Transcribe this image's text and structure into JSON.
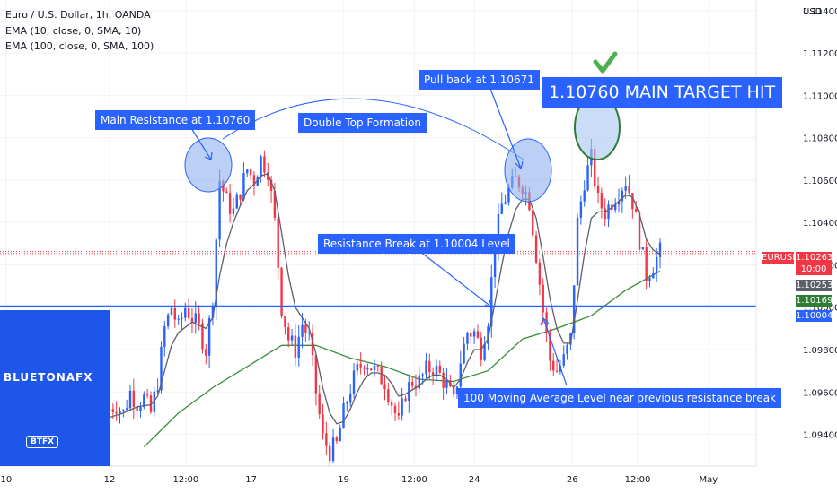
{
  "legend": {
    "title": "Euro / U.S. Dollar, 1h, OANDA",
    "ema10": "EMA (10, close, 0, SMA, 10)",
    "ema100": "EMA (100, close, 0, SMA, 100)"
  },
  "currency_label": "USD",
  "symbol_tag": "EURUSD",
  "last_price": "1.10263",
  "countdown": "10:00",
  "ema10_value": "1.10253",
  "ema100_value": "1.10169",
  "support_value": "1.10004",
  "annotations": {
    "main_resistance": "Main Resistance at 1.10760",
    "double_top": "Double Top Formation",
    "pull_back": "Pull back at 1.10671",
    "target_hit": "1.10760 MAIN TARGET HIT",
    "resistance_break": "Resistance Break at 1.10004 Level",
    "ma_level": "100 Moving Average Level near previous resistance break"
  },
  "brand": {
    "name": "BLUETONAFX",
    "badge": "BTFX"
  },
  "colors": {
    "up": "#2962ff",
    "down": "#f23645",
    "ema10": "#5d606b",
    "ema100": "#388e3c",
    "support": "#2962ff",
    "callout": "#2962ff",
    "check": "#4caf50"
  },
  "chart_data": {
    "type": "candlestick",
    "symbol": "EURUSD",
    "timeframe": "1h",
    "ylim": [
      1.0925,
      1.1145
    ],
    "y_ticks": [
      "1.11400",
      "1.11200",
      "1.11000",
      "1.10800",
      "1.10600",
      "1.10400",
      "1.10200",
      "1.10000",
      "1.09800",
      "1.09600",
      "1.09400"
    ],
    "x_ticks": [
      "10",
      "12",
      "12:00",
      "17",
      "19",
      "12:00",
      "24",
      "26",
      "12:00",
      "May"
    ],
    "support_level": 1.10004,
    "close_path": [
      [
        0,
        1.0952
      ],
      [
        2,
        1.0954
      ],
      [
        4,
        1.095
      ],
      [
        6,
        1.096
      ],
      [
        8,
        1.0955
      ],
      [
        10,
        1.0957
      ],
      [
        12,
        1.095
      ],
      [
        14,
        1.0965
      ],
      [
        16,
        1.099
      ],
      [
        18,
        1.1
      ],
      [
        20,
        1.099
      ],
      [
        22,
        1.1
      ],
      [
        24,
        1.0995
      ],
      [
        26,
        1.099
      ],
      [
        28,
        1.098
      ],
      [
        30,
        1.1005
      ],
      [
        32,
        1.106
      ],
      [
        34,
        1.105
      ],
      [
        36,
        1.1045
      ],
      [
        38,
        1.1055
      ],
      [
        40,
        1.1065
      ],
      [
        42,
        1.106
      ],
      [
        44,
        1.107
      ],
      [
        46,
        1.1065
      ],
      [
        48,
        1.104
      ],
      [
        50,
        1.1
      ],
      [
        52,
        1.0985
      ],
      [
        54,
        1.098
      ],
      [
        56,
        1.0992
      ],
      [
        58,
        1.0985
      ],
      [
        60,
        1.096
      ],
      [
        62,
        1.0938
      ],
      [
        64,
        1.0932
      ],
      [
        66,
        1.0935
      ],
      [
        68,
        1.095
      ],
      [
        70,
        1.0962
      ],
      [
        72,
        1.097
      ],
      [
        74,
        1.0975
      ],
      [
        76,
        1.0972
      ],
      [
        78,
        1.0968
      ],
      [
        80,
        1.0965
      ],
      [
        82,
        1.0955
      ],
      [
        84,
        1.0945
      ],
      [
        86,
        1.096
      ],
      [
        88,
        1.0965
      ],
      [
        90,
        1.0965
      ],
      [
        92,
        1.097
      ],
      [
        94,
        1.0972
      ],
      [
        96,
        1.0968
      ],
      [
        98,
        1.0963
      ],
      [
        100,
        1.0955
      ],
      [
        102,
        1.0975
      ],
      [
        104,
        1.0988
      ],
      [
        106,
        1.0988
      ],
      [
        108,
        1.098
      ],
      [
        110,
        1.0995
      ],
      [
        112,
        1.103
      ],
      [
        114,
        1.1048
      ],
      [
        116,
        1.1055
      ],
      [
        118,
        1.106
      ],
      [
        120,
        1.1058
      ],
      [
        122,
        1.105
      ],
      [
        124,
        1.1025
      ],
      [
        126,
        1.0998
      ],
      [
        128,
        1.0975
      ],
      [
        130,
        1.097
      ],
      [
        132,
        1.0975
      ],
      [
        134,
        1.0985
      ],
      [
        136,
        1.104
      ],
      [
        138,
        1.106
      ],
      [
        140,
        1.107
      ],
      [
        142,
        1.105
      ],
      [
        144,
        1.1045
      ],
      [
        146,
        1.105
      ],
      [
        148,
        1.1055
      ],
      [
        150,
        1.106
      ],
      [
        152,
        1.105
      ],
      [
        154,
        1.1032
      ],
      [
        156,
        1.1015
      ],
      [
        158,
        1.102
      ],
      [
        160,
        1.1026
      ]
    ],
    "ema10_path": [
      [
        0,
        1.0948
      ],
      [
        4,
        1.095
      ],
      [
        8,
        1.0953
      ],
      [
        12,
        1.0954
      ],
      [
        14,
        1.0958
      ],
      [
        16,
        1.097
      ],
      [
        18,
        1.0982
      ],
      [
        20,
        1.0988
      ],
      [
        24,
        1.0993
      ],
      [
        28,
        1.099
      ],
      [
        30,
        1.0995
      ],
      [
        32,
        1.1015
      ],
      [
        34,
        1.103
      ],
      [
        36,
        1.104
      ],
      [
        38,
        1.1048
      ],
      [
        40,
        1.1055
      ],
      [
        42,
        1.1058
      ],
      [
        44,
        1.1062
      ],
      [
        46,
        1.1063
      ],
      [
        48,
        1.1055
      ],
      [
        50,
        1.1035
      ],
      [
        52,
        1.1015
      ],
      [
        54,
        1.1
      ],
      [
        56,
        1.0995
      ],
      [
        58,
        1.099
      ],
      [
        60,
        1.0978
      ],
      [
        62,
        1.0962
      ],
      [
        64,
        1.095
      ],
      [
        66,
        1.0945
      ],
      [
        68,
        1.0946
      ],
      [
        70,
        1.0952
      ],
      [
        72,
        1.096
      ],
      [
        74,
        1.0966
      ],
      [
        76,
        1.0969
      ],
      [
        78,
        1.0969
      ],
      [
        80,
        1.0968
      ],
      [
        82,
        1.0964
      ],
      [
        84,
        1.0958
      ],
      [
        86,
        1.0959
      ],
      [
        88,
        1.0961
      ],
      [
        90,
        1.0963
      ],
      [
        92,
        1.0966
      ],
      [
        94,
        1.0968
      ],
      [
        96,
        1.0968
      ],
      [
        98,
        1.0966
      ],
      [
        100,
        1.0962
      ],
      [
        102,
        1.0966
      ],
      [
        104,
        1.0974
      ],
      [
        106,
        1.098
      ],
      [
        108,
        1.098
      ],
      [
        110,
        1.0985
      ],
      [
        112,
        1.1002
      ],
      [
        114,
        1.102
      ],
      [
        116,
        1.1035
      ],
      [
        118,
        1.1046
      ],
      [
        120,
        1.1051
      ],
      [
        122,
        1.1051
      ],
      [
        124,
        1.1042
      ],
      [
        126,
        1.1024
      ],
      [
        128,
        1.1004
      ],
      [
        130,
        1.099
      ],
      [
        132,
        1.0983
      ],
      [
        134,
        1.0983
      ],
      [
        136,
        1.1003
      ],
      [
        138,
        1.1025
      ],
      [
        140,
        1.1042
      ],
      [
        142,
        1.1045
      ],
      [
        144,
        1.1045
      ],
      [
        146,
        1.1047
      ],
      [
        148,
        1.105
      ],
      [
        150,
        1.1053
      ],
      [
        152,
        1.1052
      ],
      [
        154,
        1.1044
      ],
      [
        156,
        1.1032
      ],
      [
        158,
        1.1027
      ],
      [
        160,
        1.1025
      ]
    ],
    "ema100_path": [
      [
        10,
        1.0934
      ],
      [
        20,
        1.095
      ],
      [
        30,
        1.0962
      ],
      [
        40,
        1.0972
      ],
      [
        50,
        1.0982
      ],
      [
        60,
        1.0982
      ],
      [
        70,
        1.0976
      ],
      [
        80,
        1.0972
      ],
      [
        90,
        1.0966
      ],
      [
        100,
        1.0965
      ],
      [
        110,
        1.097
      ],
      [
        120,
        1.0985
      ],
      [
        130,
        1.099
      ],
      [
        140,
        1.0996
      ],
      [
        150,
        1.1008
      ],
      [
        160,
        1.1017
      ]
    ]
  }
}
